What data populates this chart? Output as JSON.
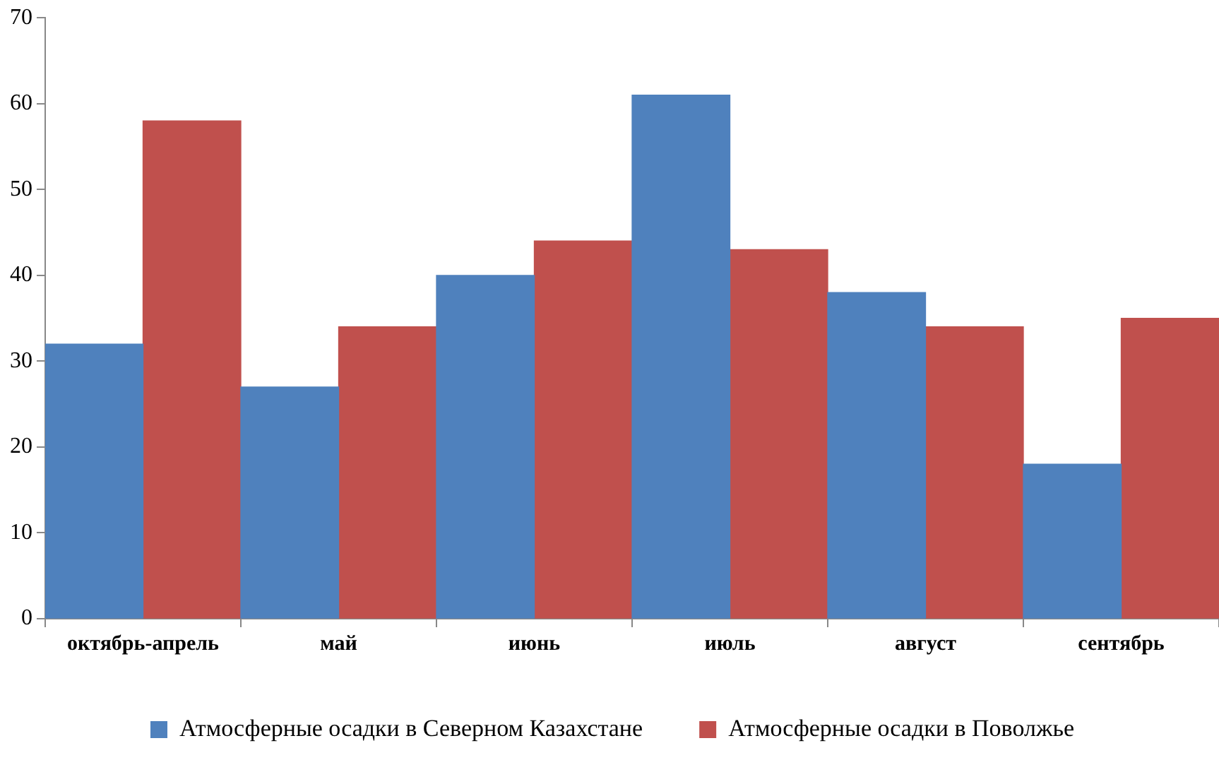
{
  "chart_data": {
    "type": "bar",
    "categories": [
      "октябрь-апрель",
      "май",
      "июнь",
      "июль",
      "август",
      "сентябрь"
    ],
    "series": [
      {
        "name": "Атмосферные осадки в Северном Казахстане",
        "color": "#4f81bd",
        "values": [
          32,
          27,
          40,
          61,
          38,
          18
        ]
      },
      {
        "name": "Атмосферные осадки в Поволжье",
        "color": "#c0504d",
        "values": [
          58,
          34,
          44,
          43,
          34,
          35
        ]
      }
    ],
    "ylim": [
      0,
      70
    ],
    "yticks": [
      0,
      10,
      20,
      30,
      40,
      50,
      60,
      70
    ],
    "grid": false,
    "legend": "bottom"
  }
}
